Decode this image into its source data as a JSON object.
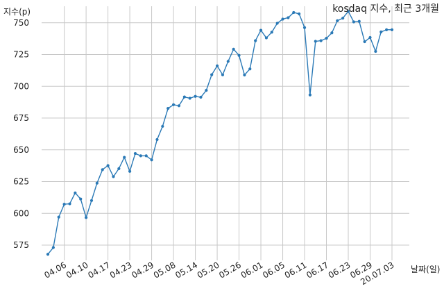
{
  "chart_data": {
    "type": "line",
    "title": "kosdaq 지수, 최근 3개월",
    "xlabel": "날짜(일)",
    "ylabel": "지수(p)",
    "ylim": [
      563,
      763
    ],
    "yticks": [
      575,
      600,
      625,
      650,
      675,
      700,
      725,
      750
    ],
    "grid": true,
    "series": [
      {
        "color": "#2a79b6",
        "x": [
          "04.01",
          "04.02",
          "04.03",
          "04.06",
          "04.07",
          "04.08",
          "04.09",
          "04.10",
          "04.13",
          "04.14",
          "04.16",
          "04.17",
          "04.20",
          "04.21",
          "04.22",
          "04.23",
          "04.24",
          "04.27",
          "04.28",
          "04.29",
          "05.04",
          "05.06",
          "05.07",
          "05.08",
          "05.11",
          "05.12",
          "05.13",
          "05.14",
          "05.15",
          "05.18",
          "05.19",
          "05.20",
          "05.21",
          "05.22",
          "05.25",
          "05.26",
          "05.27",
          "05.28",
          "05.29",
          "06.01",
          "06.02",
          "06.03",
          "06.04",
          "06.05",
          "06.08",
          "06.09",
          "06.10",
          "06.11",
          "06.12",
          "06.15",
          "06.16",
          "06.17",
          "06.18",
          "06.19",
          "06.22",
          "06.23",
          "06.24",
          "06.25",
          "06.26",
          "06.29",
          "06.30",
          "07.01",
          "07.02",
          "07.03"
        ],
        "values": [
          567.8,
          573.1,
          597.1,
          607.2,
          607.5,
          616.1,
          611.3,
          596.7,
          610.1,
          623.8,
          634.4,
          637.6,
          628.9,
          635.2,
          644.1,
          633.1,
          647.1,
          645.3,
          645.3,
          642.1,
          658.1,
          668.5,
          682.6,
          685.5,
          684.7,
          691.6,
          690.6,
          692.1,
          691.4,
          696.8,
          709.1,
          716.1,
          709.0,
          719.6,
          729.2,
          724.3,
          708.9,
          713.7,
          735.9,
          744.1,
          738.1,
          742.6,
          749.6,
          752.9,
          754.0,
          758.1,
          757.0,
          746.2,
          693.2,
          735.4,
          735.9,
          737.8,
          742.1,
          751.6,
          753.6,
          759.0,
          750.7,
          751.1,
          735.1,
          738.4,
          727.5,
          742.8,
          744.5,
          744.5
        ]
      }
    ],
    "xticks": [
      "04.06",
      "04.10",
      "04.17",
      "04.23",
      "04.29",
      "05.08",
      "05.14",
      "05.20",
      "05.26",
      "06.01",
      "06.05",
      "06.11",
      "06.17",
      "06.23",
      "06.29",
      "20.07.03"
    ]
  }
}
